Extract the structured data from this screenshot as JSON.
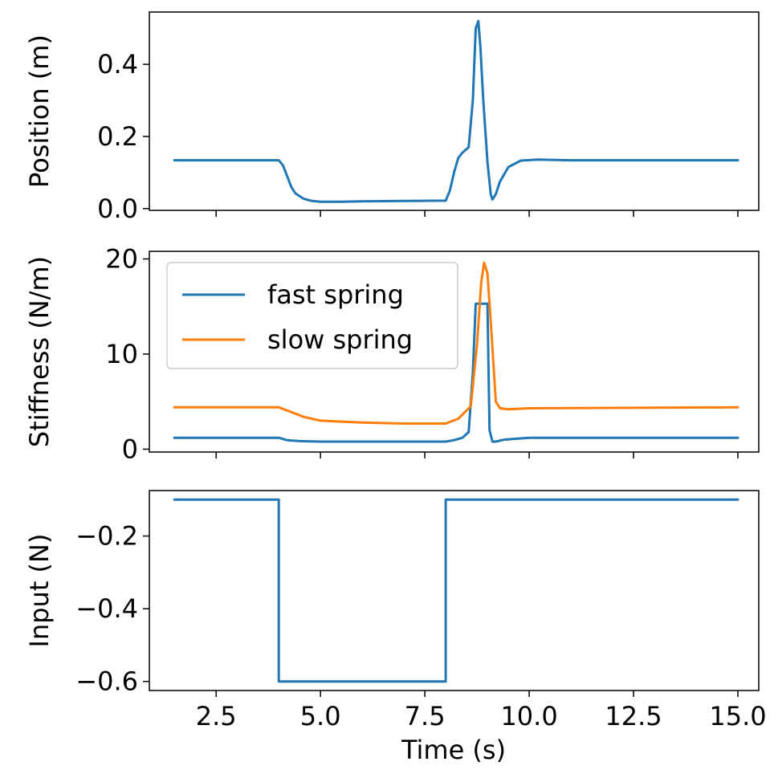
{
  "chart_data": {
    "type": "line",
    "xlabel": "Time (s)",
    "xlim": [
      0.9,
      15.5
    ],
    "x_ticks": [
      "2.5",
      "5.0",
      "7.5",
      "10.0",
      "12.5",
      "15.0"
    ],
    "x_tick_values": [
      2.5,
      5.0,
      7.5,
      10.0,
      12.5,
      15.0
    ],
    "colors": {
      "fast": "#1f77b4",
      "slow": "#ff7f0e"
    },
    "panels": [
      {
        "ylabel": "Position (m)",
        "ylim": [
          -0.005,
          0.545
        ],
        "y_ticks": [
          "0.0",
          "0.2",
          "0.4"
        ],
        "y_tick_values": [
          0.0,
          0.2,
          0.4
        ],
        "series": [
          {
            "color_key": "fast",
            "x": [
              1.5,
              4.0,
              4.1,
              4.2,
              4.3,
              4.4,
              4.6,
              4.8,
              5.0,
              5.5,
              6.0,
              7.0,
              8.0,
              8.1,
              8.2,
              8.3,
              8.4,
              8.55,
              8.65,
              8.72,
              8.78,
              8.83,
              8.9,
              9.0,
              9.08,
              9.12,
              9.2,
              9.3,
              9.5,
              9.8,
              10.2,
              11.0,
              15.0
            ],
            "y": [
              0.134,
              0.134,
              0.12,
              0.09,
              0.06,
              0.042,
              0.027,
              0.021,
              0.019,
              0.019,
              0.02,
              0.021,
              0.022,
              0.05,
              0.1,
              0.14,
              0.155,
              0.17,
              0.3,
              0.5,
              0.52,
              0.45,
              0.3,
              0.13,
              0.04,
              0.025,
              0.04,
              0.075,
              0.115,
              0.133,
              0.136,
              0.134,
              0.134
            ]
          }
        ]
      },
      {
        "ylabel": "Stiffness (N/m)",
        "ylim": [
          -0.3,
          20.8
        ],
        "y_ticks": [
          "0",
          "10",
          "20"
        ],
        "y_tick_values": [
          0,
          10,
          20
        ],
        "legend": {
          "position": "upper-left",
          "entries": [
            "fast spring",
            "slow spring"
          ]
        },
        "series": [
          {
            "name": "fast spring",
            "color_key": "fast",
            "x": [
              1.5,
              4.0,
              4.2,
              4.5,
              5.0,
              6.0,
              7.0,
              8.0,
              8.2,
              8.4,
              8.55,
              8.65,
              8.72,
              8.78,
              8.84,
              9.0,
              9.05,
              9.12,
              9.2,
              9.4,
              10.0,
              15.0
            ],
            "y": [
              1.2,
              1.2,
              0.95,
              0.85,
              0.8,
              0.8,
              0.8,
              0.8,
              0.95,
              1.2,
              1.8,
              8.0,
              15.3,
              15.3,
              15.3,
              15.3,
              2.0,
              0.8,
              0.8,
              1.0,
              1.2,
              1.2
            ]
          },
          {
            "name": "slow spring",
            "color_key": "slow",
            "x": [
              1.5,
              4.0,
              4.3,
              4.6,
              5.0,
              5.5,
              6.0,
              7.0,
              8.0,
              8.3,
              8.6,
              8.75,
              8.85,
              8.92,
              9.0,
              9.1,
              9.2,
              9.3,
              9.5,
              10.0,
              15.0
            ],
            "y": [
              4.4,
              4.4,
              3.9,
              3.4,
              3.0,
              2.9,
              2.8,
              2.7,
              2.7,
              3.2,
              4.5,
              11.0,
              17.5,
              19.6,
              18.5,
              12.0,
              5.0,
              4.3,
              4.2,
              4.3,
              4.4
            ]
          }
        ]
      },
      {
        "ylabel": "Input (N)",
        "ylim": [
          -0.625,
          -0.075
        ],
        "y_ticks": [
          "−0.2",
          "−0.4",
          "−0.6"
        ],
        "y_tick_values": [
          -0.2,
          -0.4,
          -0.6
        ],
        "series": [
          {
            "color_key": "fast",
            "x": [
              1.5,
              4.0,
              4.0,
              8.0,
              8.0,
              15.0
            ],
            "y": [
              -0.1,
              -0.1,
              -0.6,
              -0.6,
              -0.1,
              -0.1
            ]
          }
        ]
      }
    ]
  }
}
